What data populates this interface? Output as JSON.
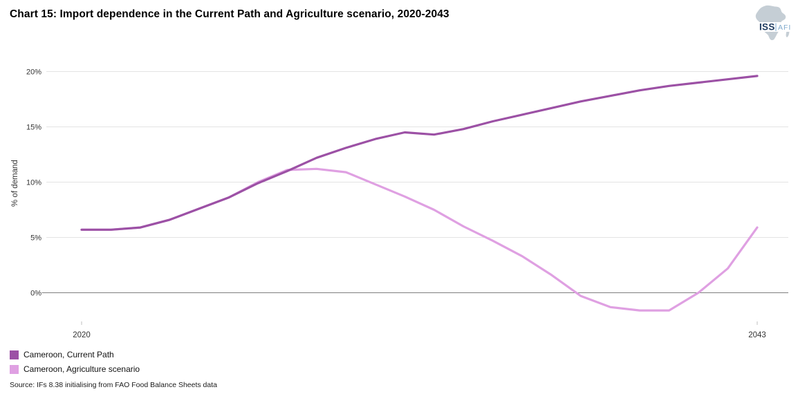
{
  "header": {
    "title": "Chart 15: Import dependence in the Current Path and Agriculture scenario, 2020-2043",
    "logo": {
      "org": "ISS",
      "program": "AFI"
    }
  },
  "chart_data": {
    "type": "line",
    "title": "Chart 15: Import dependence in the Current Path and Agriculture scenario, 2020-2043",
    "x": [
      2020,
      2021,
      2022,
      2023,
      2024,
      2025,
      2026,
      2027,
      2028,
      2029,
      2030,
      2031,
      2032,
      2033,
      2034,
      2035,
      2036,
      2037,
      2038,
      2039,
      2040,
      2041,
      2042,
      2043
    ],
    "series": [
      {
        "name": "Cameroon, Current Path",
        "color": "#9c51a5",
        "values": [
          5.7,
          5.7,
          5.9,
          6.6,
          7.6,
          8.6,
          9.9,
          11.0,
          12.2,
          13.1,
          13.9,
          14.5,
          14.3,
          14.8,
          15.5,
          16.1,
          16.7,
          17.3,
          17.8,
          18.3,
          18.7,
          19.0,
          19.3,
          19.6
        ]
      },
      {
        "name": "Cameroon, Agriculture scenario",
        "color": "#dfa0e2",
        "values": [
          5.7,
          5.7,
          5.9,
          6.6,
          7.6,
          8.6,
          10.0,
          11.1,
          11.2,
          10.9,
          9.8,
          8.7,
          7.5,
          6.0,
          4.7,
          3.3,
          1.6,
          -0.3,
          -1.3,
          -1.6,
          -1.6,
          0.0,
          2.2,
          5.9
        ]
      }
    ],
    "xlabel": "",
    "ylabel": "% of demand",
    "y_ticks": [
      0,
      5,
      10,
      15,
      20
    ],
    "y_tick_labels": [
      "0%",
      "5%",
      "10%",
      "15%",
      "20%"
    ],
    "ylim": [
      -2.5,
      20.5
    ],
    "x_axis_labels": [
      "2020",
      "2043"
    ],
    "grid": "horizontal-only",
    "legend_position": "bottom-left",
    "colors": {
      "gridline": "#e3e3e3",
      "zero_axis": "#7d7d7d",
      "tick_text": "#333333",
      "tick_mark": "#bfbfbf"
    }
  },
  "legend": {
    "items": [
      {
        "label": "Cameroon, Current Path",
        "color": "#9c51a5"
      },
      {
        "label": "Cameroon, Agriculture scenario",
        "color": "#dfa0e2"
      }
    ]
  },
  "source": "Source: IFs 8.38 initialising from FAO Food Balance Sheets data"
}
